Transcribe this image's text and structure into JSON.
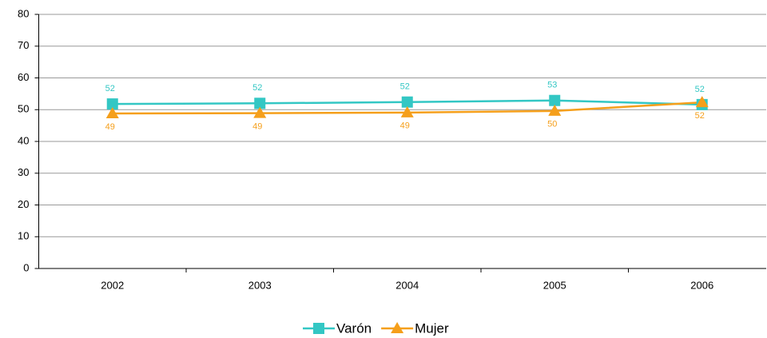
{
  "chart_data": {
    "type": "line",
    "categories": [
      "2002",
      "2003",
      "2004",
      "2005",
      "2006"
    ],
    "series": [
      {
        "name": "Varón",
        "color": "#33C7C4",
        "marker": "square",
        "values": [
          51.8,
          52.0,
          52.4,
          52.9,
          51.6
        ],
        "value_labels": [
          "52",
          "52",
          "52",
          "53",
          "52"
        ]
      },
      {
        "name": "Mujer",
        "color": "#F59F1B",
        "marker": "triangle",
        "values": [
          48.8,
          48.9,
          49.1,
          49.6,
          52.3
        ],
        "value_labels": [
          "49",
          "49",
          "49",
          "50",
          "52"
        ]
      }
    ],
    "ylim": [
      0,
      80
    ],
    "yticks": [
      0,
      10,
      20,
      30,
      40,
      50,
      60,
      70,
      80
    ],
    "grid": true
  }
}
